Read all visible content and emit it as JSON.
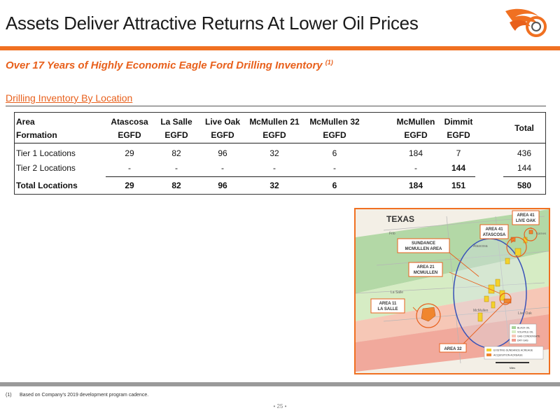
{
  "header": {
    "title": "Assets Deliver Attractive Returns At Lower Oil Prices"
  },
  "subtitle": {
    "text": "Over 17 Years of Highly Economic Eagle Ford Drilling Inventory ",
    "footnote_ref": "(1)"
  },
  "section": {
    "heading": "Drilling Inventory By Location"
  },
  "table": {
    "row_labels": {
      "area": "Area",
      "formation": "Formation"
    },
    "columns": [
      {
        "area": "Atascosa",
        "formation": "EGFD"
      },
      {
        "area": "La Salle",
        "formation": "EGFD"
      },
      {
        "area": "Live Oak",
        "formation": "EGFD"
      },
      {
        "area": "McMullen 21",
        "formation": "EGFD"
      },
      {
        "area": "McMullen 32",
        "formation": "EGFD"
      },
      {
        "area": "McMullen",
        "formation": "EGFD"
      },
      {
        "area": "Dimmit",
        "formation": "EGFD"
      }
    ],
    "total_header": "Total",
    "rows": [
      {
        "label": "Tier 1 Locations",
        "values": [
          "29",
          "82",
          "96",
          "32",
          "6",
          "184",
          "7"
        ],
        "total": "436"
      },
      {
        "label": "Tier 2 Locations",
        "values": [
          "-",
          "-",
          "-",
          "-",
          "-",
          "-",
          "144"
        ],
        "total": "144"
      }
    ],
    "totals_row": {
      "label": "Total Locations",
      "values": [
        "29",
        "82",
        "96",
        "32",
        "6",
        "184",
        "151"
      ],
      "total": "580"
    }
  },
  "map": {
    "state_label": "TEXAS",
    "county_labels": {
      "frio": "Frio",
      "atascosa": "Atascosa",
      "karnes": "Karnes",
      "la_salle": "La Salle",
      "mcmullen": "McMullen",
      "live_oak": "Live Oak"
    },
    "callouts": {
      "area41_liveoak": [
        "AREA 41",
        "LIVE OAK"
      ],
      "area41_atascosa": [
        "AREA 41",
        "ATASCOSA"
      ],
      "sundance": [
        "SUNDANCE",
        "MCMULLEN AREA"
      ],
      "area21": [
        "AREA 21",
        "MCMULLEN"
      ],
      "area11": [
        "AREA 11",
        "LA SALLE"
      ],
      "area32": [
        "AREA 32"
      ]
    },
    "legend_windows": [
      "BLACK OIL",
      "VOLATILE OIL",
      "GAS CONDENSATE",
      "DRY GAS"
    ],
    "legend_acreage": [
      "EXISTING SUNDANCE ACREAGE",
      "ACQUISITION ACREAGE"
    ],
    "scale_label": "Miles",
    "colors": {
      "black_oil": "#a7d39a",
      "volatile_oil": "#d6ecc4",
      "gas_condensate": "#f6c7b6",
      "dry_gas": "#f09c8e",
      "sundance": "#f3d22c",
      "acquisition": "#f0862f",
      "sundance_ellipse": "#3a53b8",
      "callout_border": "#e8601c"
    }
  },
  "footnote": {
    "number": "(1)",
    "text": "Based on Company's 2019 development program cadence."
  },
  "page": {
    "number": "25"
  }
}
